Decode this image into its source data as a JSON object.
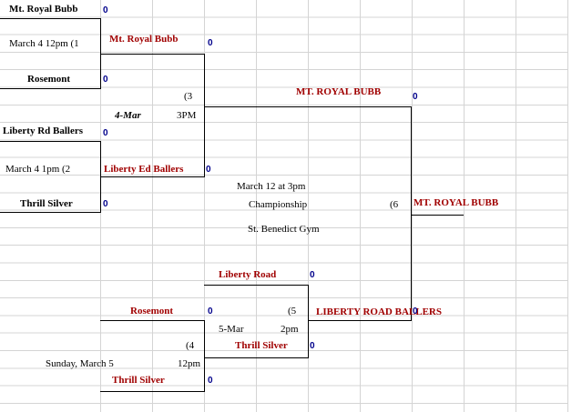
{
  "cells": [
    "Mt. Royal Bubb",
    "0",
    "March 4  12pm (1",
    "Mt. Royal Bubb",
    "0",
    "Rosemont",
    "0",
    "(3",
    "MT. ROYAL BUBB",
    "0",
    "4-Mar",
    "3PM",
    "Liberty Rd Ballers",
    "0",
    "March 4   1pm (2",
    "Liberty Ed Ballers",
    "0",
    "March 12 at 3pm",
    "Championship",
    "(6",
    "MT. ROYAL BUBB",
    "Thrill Silver",
    "0",
    "St. Benedict Gym",
    "Liberty  Road",
    "0",
    "Rosemont",
    "0",
    "(5",
    "LIBERTY ROAD BALLERS",
    "0",
    "5-Mar",
    "2pm",
    "(4",
    "Thrill  Silver",
    "0",
    "Sunday, March 5",
    "12pm",
    "Thrill Silver",
    "0"
  ]
}
